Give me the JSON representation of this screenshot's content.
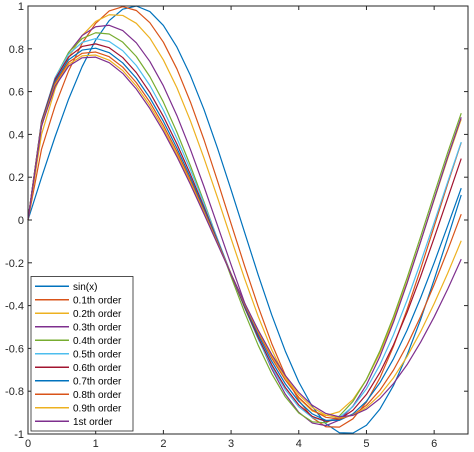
{
  "chart_data": {
    "type": "line",
    "title": "",
    "xlabel": "",
    "ylabel": "",
    "xlim": [
      0,
      6.5
    ],
    "ylim": [
      -1,
      1
    ],
    "x_ticks": [
      0,
      1,
      2,
      3,
      4,
      5,
      6
    ],
    "x_tick_labels": [
      "0",
      "1",
      "2",
      "3",
      "4",
      "5",
      "6"
    ],
    "y_ticks": [
      1,
      0.8,
      0.6,
      0.4,
      0.2,
      0,
      -0.2,
      -0.4,
      -0.6,
      -0.8,
      -1
    ],
    "y_tick_labels": [
      "1",
      "0.8",
      "0.6",
      "0.4",
      "0.2",
      "0",
      "-0.2",
      "-0.4",
      "-0.6",
      "-0.8",
      "-1"
    ],
    "grid": false,
    "legend_position": "bottom-left",
    "x": [
      0,
      0.2,
      0.4,
      0.6,
      0.8,
      1.0,
      1.2,
      1.4,
      1.6,
      1.8,
      2.0,
      2.2,
      2.4,
      2.6,
      2.8,
      3.0,
      3.2,
      3.4,
      3.6,
      3.8,
      4.0,
      4.2,
      4.4,
      4.6,
      4.8,
      5.0,
      5.2,
      5.4,
      5.6,
      5.8,
      6.0,
      6.2,
      6.4
    ],
    "series": [
      {
        "name": "sin(x)",
        "color": "#0072BD",
        "values": [
          0,
          0.199,
          0.389,
          0.565,
          0.717,
          0.841,
          0.932,
          0.985,
          1.0,
          0.974,
          0.909,
          0.808,
          0.675,
          0.516,
          0.335,
          0.141,
          -0.058,
          -0.256,
          -0.443,
          -0.612,
          -0.757,
          -0.872,
          -0.952,
          -0.994,
          -0.996,
          -0.959,
          -0.883,
          -0.773,
          -0.631,
          -0.465,
          -0.279,
          -0.083,
          0.117
        ]
      },
      {
        "name": "0.1th order",
        "color": "#D95319",
        "values": [
          0,
          0.331,
          0.533,
          0.697,
          0.826,
          0.919,
          0.977,
          0.997,
          0.979,
          0.922,
          0.831,
          0.706,
          0.551,
          0.375,
          0.182,
          -0.017,
          -0.215,
          -0.404,
          -0.577,
          -0.725,
          -0.843,
          -0.924,
          -0.966,
          -0.968,
          -0.929,
          -0.851,
          -0.737,
          -0.59,
          -0.418,
          -0.229,
          -0.03,
          0.169,
          0.362
        ]
      },
      {
        "name": "0.2th order",
        "color": "#EDB120",
        "values": [
          0,
          0.4,
          0.612,
          0.759,
          0.862,
          0.928,
          0.959,
          0.956,
          0.919,
          0.85,
          0.748,
          0.618,
          0.463,
          0.289,
          0.104,
          -0.087,
          -0.274,
          -0.45,
          -0.606,
          -0.735,
          -0.832,
          -0.893,
          -0.914,
          -0.896,
          -0.839,
          -0.746,
          -0.62,
          -0.466,
          -0.29,
          -0.101,
          0.094,
          0.287,
          0.471
        ]
      },
      {
        "name": "0.3th order",
        "color": "#7E2F8E",
        "values": [
          0,
          0.438,
          0.65,
          0.782,
          0.862,
          0.903,
          0.91,
          0.885,
          0.828,
          0.741,
          0.627,
          0.488,
          0.329,
          0.156,
          -0.026,
          -0.209,
          -0.387,
          -0.551,
          -0.695,
          -0.813,
          -0.899,
          -0.949,
          -0.961,
          -0.935,
          -0.87,
          -0.77,
          -0.637,
          -0.477,
          -0.296,
          -0.102,
          0.097,
          0.294,
          0.48
        ]
      },
      {
        "name": "0.4th order",
        "color": "#77AC30",
        "values": [
          0,
          0.457,
          0.664,
          0.783,
          0.848,
          0.875,
          0.869,
          0.831,
          0.764,
          0.67,
          0.551,
          0.41,
          0.253,
          0.084,
          -0.091,
          -0.265,
          -0.432,
          -0.585,
          -0.718,
          -0.826,
          -0.902,
          -0.943,
          -0.948,
          -0.916,
          -0.848,
          -0.745,
          -0.611,
          -0.451,
          -0.271,
          -0.078,
          0.12,
          0.315,
          0.499
        ]
      },
      {
        "name": "0.5th order",
        "color": "#4DBEEE",
        "values": [
          0,
          0.463,
          0.665,
          0.775,
          0.83,
          0.848,
          0.834,
          0.791,
          0.722,
          0.629,
          0.514,
          0.381,
          0.234,
          0.076,
          -0.088,
          -0.252,
          -0.41,
          -0.557,
          -0.686,
          -0.793,
          -0.873,
          -0.923,
          -0.94,
          -0.923,
          -0.872,
          -0.789,
          -0.676,
          -0.536,
          -0.375,
          -0.198,
          -0.012,
          0.178,
          0.364
        ]
      },
      {
        "name": "0.6th order",
        "color": "#A2142F",
        "values": [
          0,
          0.461,
          0.658,
          0.762,
          0.811,
          0.823,
          0.805,
          0.759,
          0.689,
          0.596,
          0.484,
          0.355,
          0.213,
          0.061,
          -0.097,
          -0.254,
          -0.407,
          -0.549,
          -0.676,
          -0.782,
          -0.864,
          -0.918,
          -0.941,
          -0.931,
          -0.889,
          -0.815,
          -0.712,
          -0.583,
          -0.432,
          -0.264,
          -0.084,
          0.102,
          0.287
        ]
      },
      {
        "name": "0.7th order",
        "color": "#0072BD",
        "values": [
          0,
          0.455,
          0.648,
          0.749,
          0.794,
          0.803,
          0.782,
          0.734,
          0.663,
          0.571,
          0.461,
          0.336,
          0.198,
          0.051,
          -0.101,
          -0.253,
          -0.4,
          -0.537,
          -0.66,
          -0.765,
          -0.848,
          -0.906,
          -0.936,
          -0.936,
          -0.906,
          -0.847,
          -0.76,
          -0.648,
          -0.515,
          -0.364,
          -0.2,
          -0.027,
          0.149
        ]
      },
      {
        "name": "0.8th order",
        "color": "#D95319",
        "values": [
          0,
          0.449,
          0.639,
          0.737,
          0.779,
          0.785,
          0.763,
          0.714,
          0.642,
          0.551,
          0.442,
          0.32,
          0.185,
          0.042,
          -0.105,
          -0.252,
          -0.394,
          -0.526,
          -0.645,
          -0.747,
          -0.829,
          -0.888,
          -0.922,
          -0.93,
          -0.911,
          -0.866,
          -0.795,
          -0.701,
          -0.585,
          -0.451,
          -0.302,
          -0.141,
          0.027
        ]
      },
      {
        "name": "0.9th order",
        "color": "#EDB120",
        "values": [
          0,
          0.444,
          0.631,
          0.727,
          0.767,
          0.771,
          0.747,
          0.698,
          0.626,
          0.535,
          0.428,
          0.307,
          0.175,
          0.035,
          -0.109,
          -0.252,
          -0.39,
          -0.519,
          -0.635,
          -0.735,
          -0.816,
          -0.876,
          -0.912,
          -0.924,
          -0.912,
          -0.876,
          -0.817,
          -0.737,
          -0.638,
          -0.522,
          -0.391,
          -0.249,
          -0.097
        ]
      },
      {
        "name": "1st order",
        "color": "#7E2F8E",
        "values": [
          0,
          0.44,
          0.625,
          0.719,
          0.758,
          0.761,
          0.735,
          0.685,
          0.612,
          0.521,
          0.415,
          0.296,
          0.166,
          0.028,
          -0.113,
          -0.253,
          -0.388,
          -0.514,
          -0.628,
          -0.726,
          -0.806,
          -0.866,
          -0.904,
          -0.92,
          -0.913,
          -0.884,
          -0.834,
          -0.764,
          -0.676,
          -0.571,
          -0.453,
          -0.323,
          -0.183
        ]
      }
    ]
  }
}
